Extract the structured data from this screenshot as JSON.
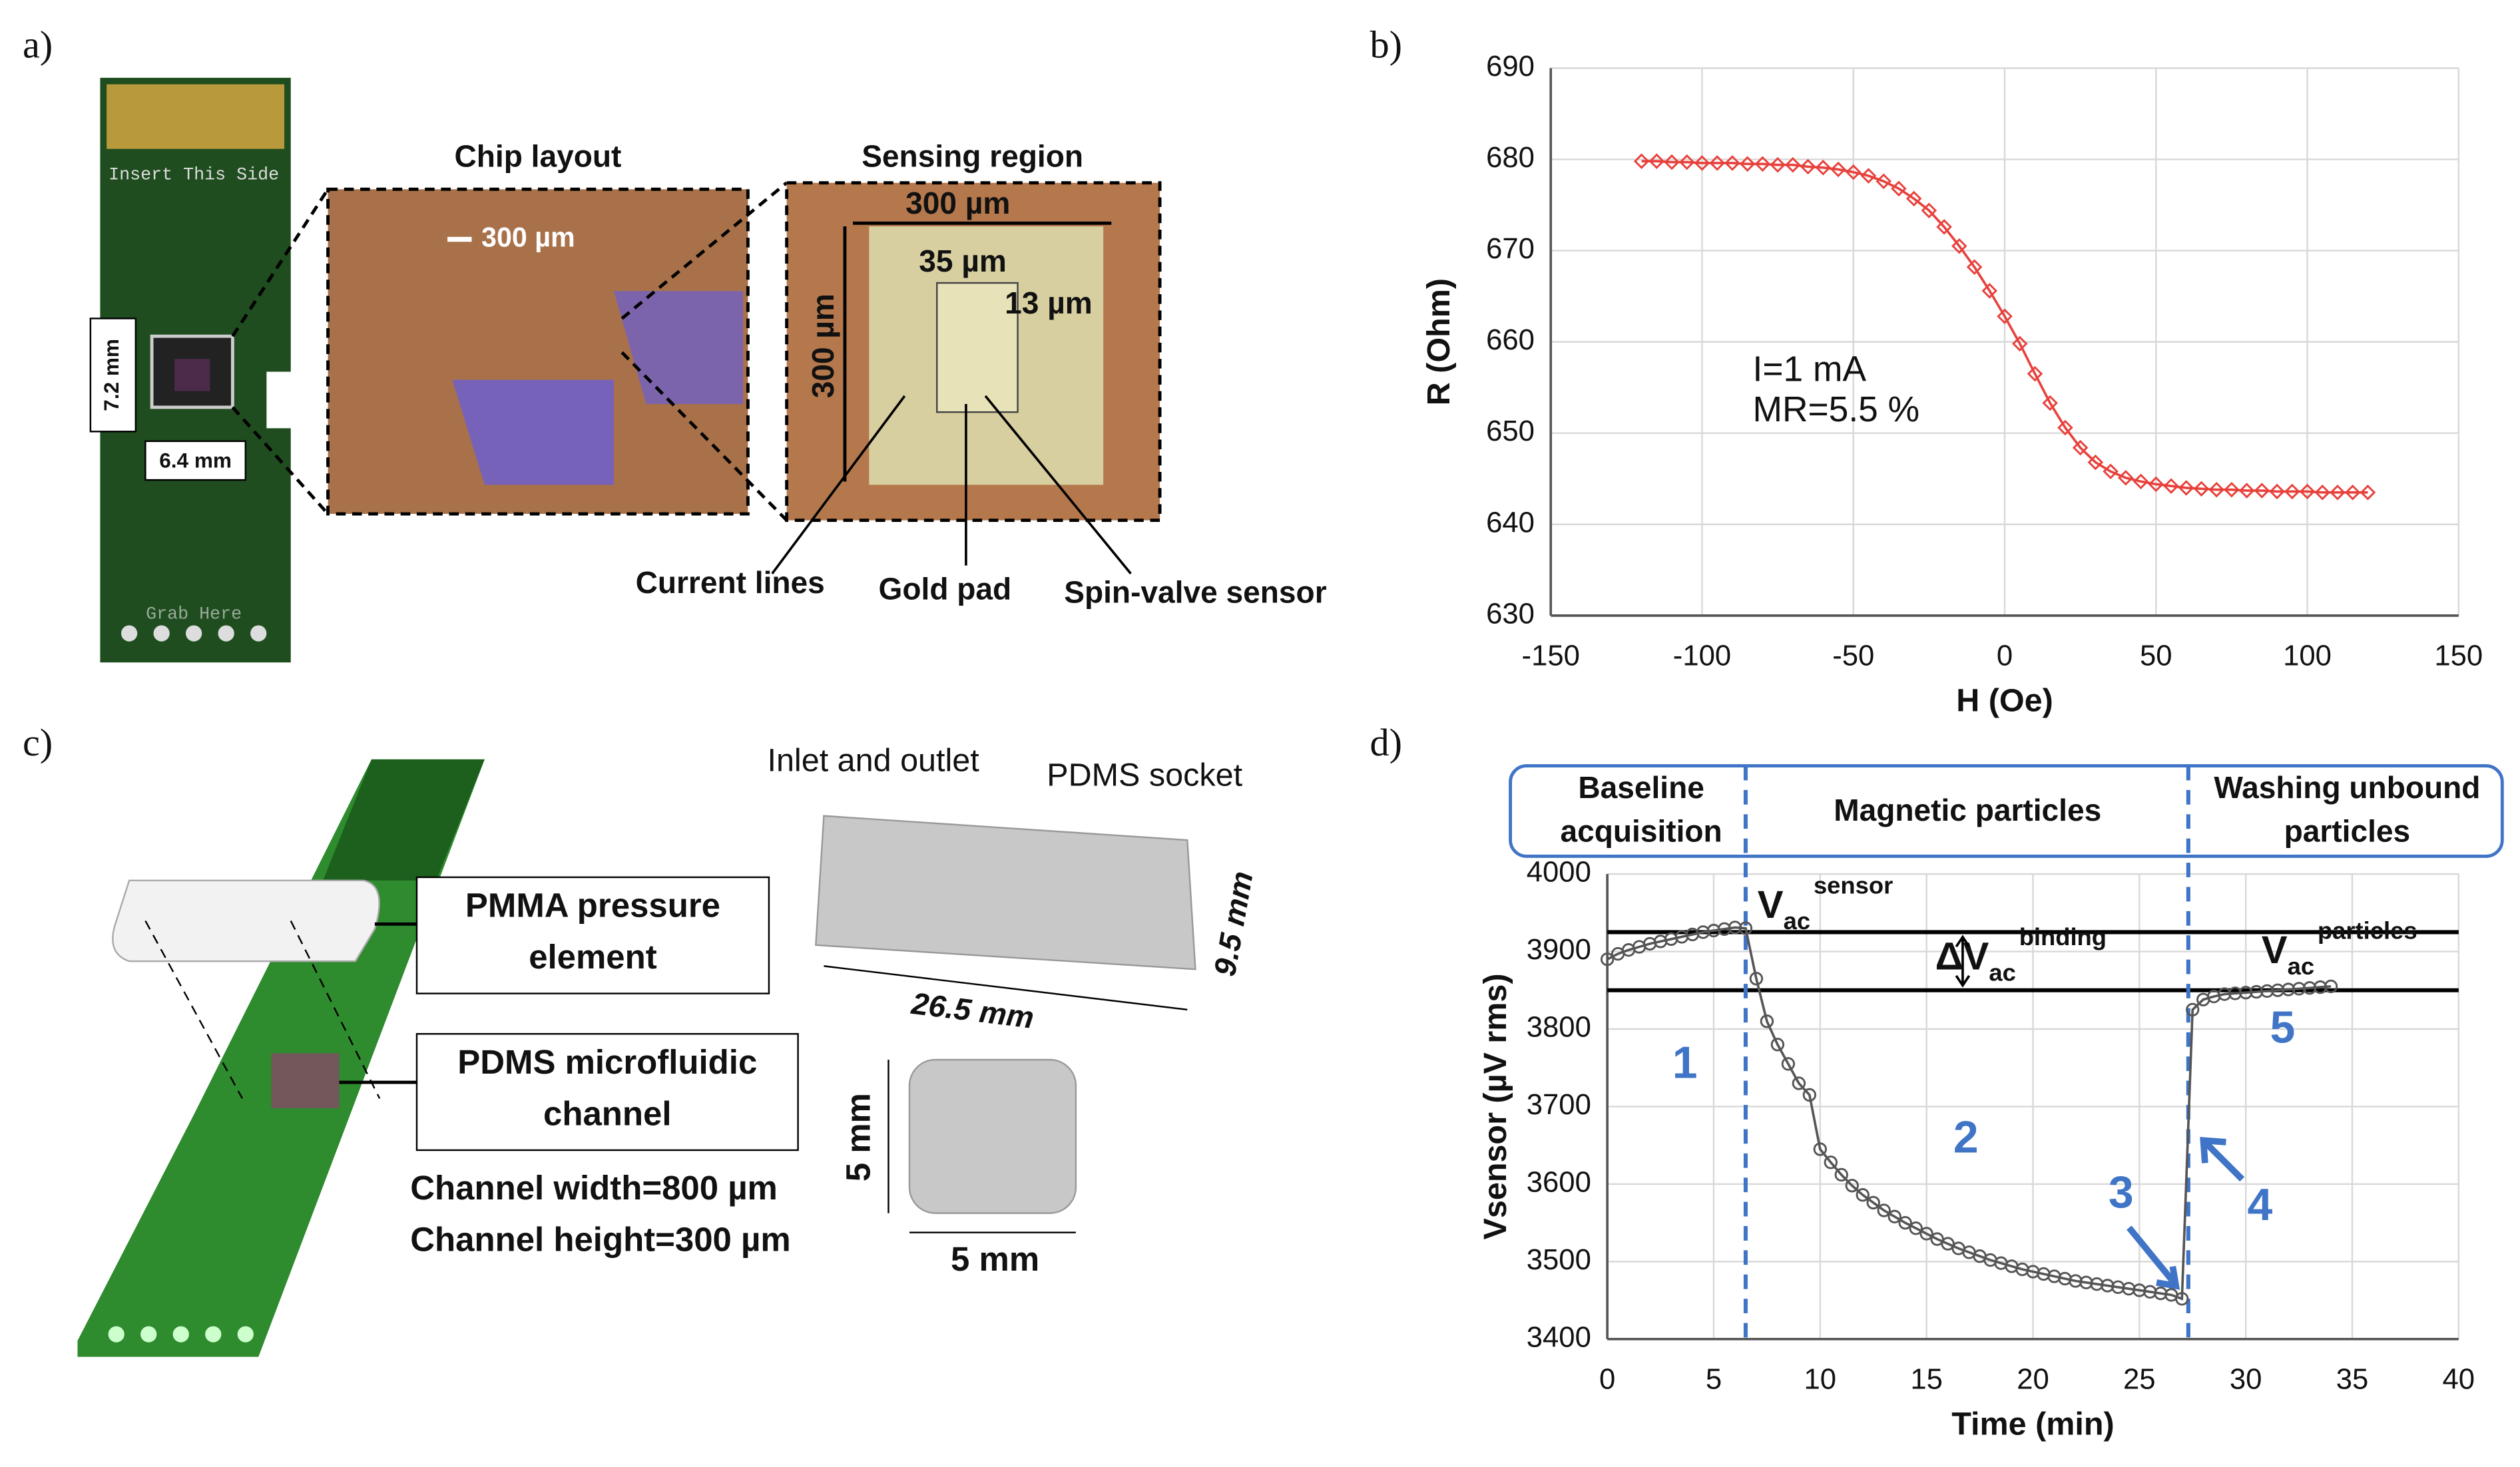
{
  "panel_labels": [
    "a)",
    "b)",
    "c)",
    "d)"
  ],
  "panel_a": {
    "pcb_top": "Insert This Side",
    "pcb_bottom": "Grab Here",
    "height_label": "7.2 mm",
    "width_label": "6.4 mm",
    "chip_title": "Chip layout",
    "chip_scale": "300 µm",
    "sensing_title": "Sensing region",
    "sensing_width": "300 µm",
    "sensing_height": "300 µm",
    "sensor_length": "35 µm",
    "sensor_width": "13 µm",
    "callouts": [
      "Current lines",
      "Gold pad",
      "Spin-valve sensor"
    ]
  },
  "panel_c": {
    "inlet": "Inlet and outlet",
    "socket": "PDMS socket",
    "pmma": [
      "PMMA pressure",
      "element"
    ],
    "pdms": [
      "PDMS microfluidic",
      "channel"
    ],
    "channel_width": "Channel width=800 µm",
    "channel_height": "Channel height=300 µm",
    "socket_length": "26.5 mm",
    "socket_height": "9.5 mm",
    "chamber_height": "5 mm",
    "chamber_width": "5 mm"
  },
  "chart_data": [
    {
      "type": "line",
      "xlabel": "H (Oe)",
      "ylabel": "R (Ohm)",
      "annotations": [
        "I=1 mA",
        "MR=5.5 %"
      ],
      "color": "#e8413c",
      "marker": "diamond",
      "grid": true,
      "xlim": [
        -150,
        150
      ],
      "xticks": [
        -150,
        -100,
        -50,
        0,
        50,
        100,
        150
      ],
      "ylim": [
        630,
        690
      ],
      "yticks": [
        630,
        640,
        650,
        660,
        670,
        680,
        690
      ],
      "x": [
        -120,
        -115,
        -110,
        -105,
        -100,
        -95,
        -90,
        -85,
        -80,
        -75,
        -70,
        -65,
        -60,
        -55,
        -50,
        -45,
        -40,
        -35,
        -30,
        -25,
        -20,
        -15,
        -10,
        -5,
        0,
        5,
        10,
        15,
        20,
        25,
        30,
        35,
        40,
        45,
        50,
        55,
        60,
        65,
        70,
        75,
        80,
        85,
        90,
        95,
        100,
        105,
        110,
        115,
        120
      ],
      "values": [
        679.8,
        679.8,
        679.7,
        679.7,
        679.6,
        679.6,
        679.6,
        679.5,
        679.5,
        679.4,
        679.4,
        679.2,
        679.1,
        678.9,
        678.6,
        678.2,
        677.6,
        676.8,
        675.7,
        674.4,
        672.6,
        670.5,
        668.2,
        665.6,
        662.8,
        659.8,
        656.5,
        653.3,
        650.6,
        648.4,
        646.8,
        645.8,
        645.1,
        644.7,
        644.4,
        644.2,
        644.0,
        643.9,
        643.8,
        643.8,
        643.7,
        643.7,
        643.6,
        643.6,
        643.6,
        643.5,
        643.5,
        643.5,
        643.5
      ]
    },
    {
      "type": "line",
      "xlabel": "Time (min)",
      "ylabel": "Vsensor (µV rms)",
      "phases": [
        [
          "Baseline",
          "acquisition"
        ],
        [
          "Magnetic particles"
        ],
        [
          "Washing unbound",
          "particles"
        ]
      ],
      "levels": [
        {
          "text": "V",
          "sub": "ac",
          "sup": "sensor"
        },
        {
          "text": "ΔV",
          "sub": "ac",
          "sup": "binding"
        },
        {
          "text": "V",
          "sub": "ac",
          "sup": "particles"
        }
      ],
      "steps": [
        "1",
        "2",
        "3",
        "4",
        "5"
      ],
      "color": "#555555",
      "marker": "circle",
      "grid": true,
      "hlines": [
        3925,
        3850
      ],
      "vlines": [
        6.5,
        27.3
      ],
      "xlim": [
        0,
        40
      ],
      "xticks": [
        0,
        5,
        10,
        15,
        20,
        25,
        30,
        35,
        40
      ],
      "ylim": [
        3400,
        4000
      ],
      "yticks": [
        3400,
        3500,
        3600,
        3700,
        3800,
        3900,
        4000
      ],
      "x": [
        0,
        0.5,
        1,
        1.5,
        2,
        2.5,
        3,
        3.5,
        4,
        4.5,
        5,
        5.5,
        6,
        6.5,
        7,
        7.5,
        8,
        8.5,
        9,
        9.5,
        10,
        10.5,
        11,
        11.5,
        12,
        12.5,
        13,
        13.5,
        14,
        14.5,
        15,
        15.5,
        16,
        16.5,
        17,
        17.5,
        18,
        18.5,
        19,
        19.5,
        20,
        20.5,
        21,
        21.5,
        22,
        22.5,
        23,
        23.5,
        24,
        24.5,
        25,
        25.5,
        26,
        26.5,
        27,
        27.5,
        28,
        28.5,
        29,
        29.5,
        30,
        30.5,
        31,
        31.5,
        32,
        32.5,
        33,
        33.5,
        34
      ],
      "values": [
        3890,
        3897,
        3902,
        3906,
        3910,
        3913,
        3916,
        3919,
        3922,
        3925,
        3927,
        3929,
        3931,
        3930,
        3865,
        3810,
        3780,
        3755,
        3730,
        3715,
        3645,
        3628,
        3612,
        3598,
        3586,
        3576,
        3566,
        3558,
        3550,
        3543,
        3536,
        3529,
        3523,
        3517,
        3512,
        3507,
        3502,
        3498,
        3494,
        3490,
        3487,
        3484,
        3481,
        3478,
        3475,
        3473,
        3471,
        3469,
        3467,
        3465,
        3463,
        3461,
        3459,
        3457,
        3452,
        3825,
        3838,
        3842,
        3845,
        3846,
        3847,
        3848,
        3849,
        3850,
        3851,
        3852,
        3853,
        3854,
        3855
      ]
    }
  ]
}
